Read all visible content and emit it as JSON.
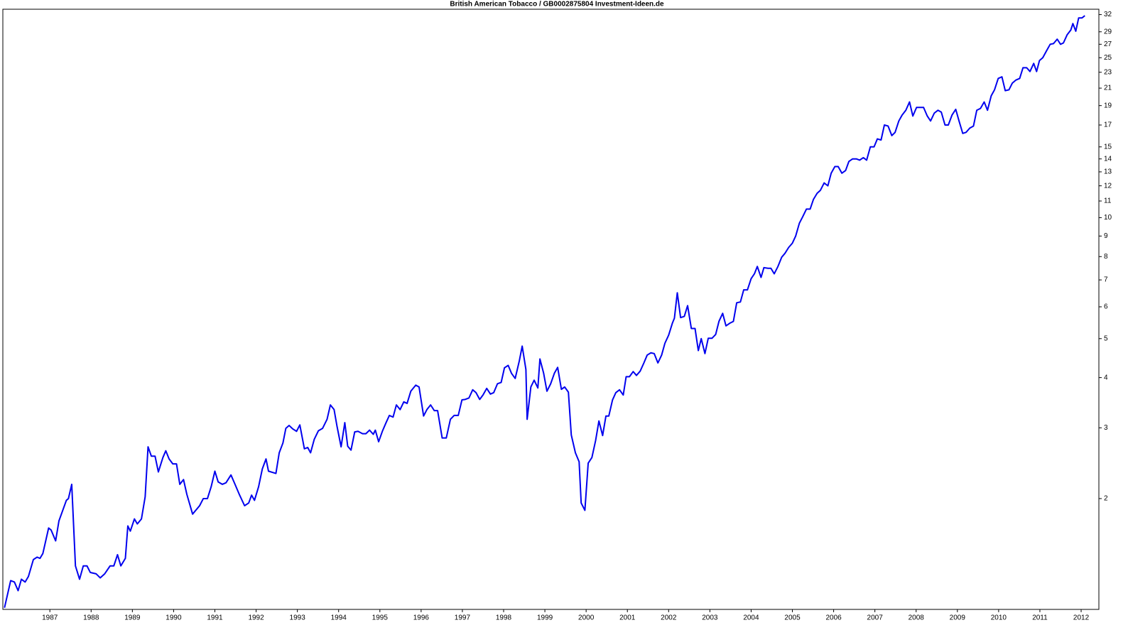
{
  "chart_data": {
    "type": "line",
    "title": "British American Tobacco / GB0002875804 Investment-Ideen.de",
    "color": "#0000ee",
    "yscale": "log",
    "grid": false,
    "xlim": [
      1985.86,
      2012.43
    ],
    "ylim": [
      1.06,
      33
    ],
    "xticks": [
      1987,
      1988,
      1989,
      1990,
      1991,
      1992,
      1993,
      1994,
      1995,
      1996,
      1997,
      1998,
      1999,
      2000,
      2001,
      2002,
      2003,
      2004,
      2005,
      2006,
      2007,
      2008,
      2009,
      2010,
      2011,
      2012
    ],
    "yticks": [
      2,
      3,
      4,
      5,
      6,
      7,
      8,
      9,
      10,
      11,
      12,
      13,
      14,
      15,
      17,
      19,
      21,
      23,
      25,
      27,
      29,
      32
    ],
    "x": [
      1985.9,
      1986.05,
      1986.14,
      1986.23,
      1986.31,
      1986.4,
      1986.48,
      1986.6,
      1986.69,
      1986.76,
      1986.83,
      1986.97,
      1987.03,
      1987.14,
      1987.22,
      1987.4,
      1987.45,
      1987.53,
      1987.62,
      1987.72,
      1987.81,
      1987.9,
      1987.98,
      1988.12,
      1988.22,
      1988.33,
      1988.46,
      1988.55,
      1988.64,
      1988.72,
      1988.83,
      1988.89,
      1988.95,
      1989.05,
      1989.12,
      1989.22,
      1989.31,
      1989.38,
      1989.46,
      1989.55,
      1989.63,
      1989.74,
      1989.81,
      1989.89,
      1989.98,
      1990.07,
      1990.15,
      1990.24,
      1990.32,
      1990.46,
      1990.63,
      1990.72,
      1990.82,
      1990.91,
      1991.0,
      1991.08,
      1991.18,
      1991.27,
      1991.39,
      1991.48,
      1991.6,
      1991.72,
      1991.82,
      1991.89,
      1991.96,
      1992.06,
      1992.15,
      1992.24,
      1992.3,
      1992.48,
      1992.56,
      1992.65,
      1992.72,
      1992.8,
      1992.89,
      1992.98,
      1993.06,
      1993.17,
      1993.25,
      1993.32,
      1993.41,
      1993.51,
      1993.61,
      1993.72,
      1993.8,
      1993.89,
      1993.96,
      1994.06,
      1994.15,
      1994.22,
      1994.3,
      1994.39,
      1994.47,
      1994.58,
      1994.66,
      1994.75,
      1994.84,
      1994.89,
      1994.97,
      1995.06,
      1995.15,
      1995.23,
      1995.32,
      1995.4,
      1995.49,
      1995.58,
      1995.66,
      1995.75,
      1995.87,
      1995.95,
      1996.06,
      1996.14,
      1996.23,
      1996.32,
      1996.4,
      1996.51,
      1996.61,
      1996.71,
      1996.8,
      1996.9,
      1996.99,
      1997.07,
      1997.16,
      1997.25,
      1997.33,
      1997.42,
      1997.5,
      1997.59,
      1997.68,
      1997.76,
      1997.85,
      1997.94,
      1998.02,
      1998.11,
      1998.19,
      1998.28,
      1998.38,
      1998.45,
      1998.54,
      1998.57,
      1998.66,
      1998.74,
      1998.83,
      1998.88,
      1998.97,
      1999.05,
      1999.14,
      1999.23,
      1999.31,
      1999.4,
      1999.48,
      1999.57,
      1999.64,
      1999.74,
      1999.83,
      1999.88,
      1999.97,
      2000.05,
      2000.14,
      2000.23,
      2000.31,
      2000.4,
      2000.48,
      2000.55,
      2000.64,
      2000.72,
      2000.81,
      2000.9,
      2000.97,
      2001.05,
      2001.14,
      2001.22,
      2001.31,
      2001.4,
      2001.48,
      2001.57,
      2001.65,
      2001.74,
      2001.83,
      2001.91,
      2002.0,
      2002.09,
      2002.14,
      2002.21,
      2002.29,
      2002.38,
      2002.46,
      2002.55,
      2002.64,
      2002.72,
      2002.79,
      2002.88,
      2002.96,
      2003.05,
      2003.14,
      2003.22,
      2003.31,
      2003.39,
      2003.48,
      2003.57,
      2003.65,
      2003.74,
      2003.82,
      2003.91,
      2004.0,
      2004.08,
      2004.15,
      2004.24,
      2004.31,
      2004.41,
      2004.48,
      2004.56,
      2004.65,
      2004.74,
      2004.82,
      2004.91,
      2005.0,
      2005.08,
      2005.17,
      2005.25,
      2005.34,
      2005.43,
      2005.51,
      2005.6,
      2005.68,
      2005.77,
      2005.86,
      2005.94,
      2006.03,
      2006.11,
      2006.2,
      2006.29,
      2006.37,
      2006.46,
      2006.55,
      2006.63,
      2006.72,
      2006.8,
      2006.89,
      2006.98,
      2007.06,
      2007.15,
      2007.23,
      2007.32,
      2007.41,
      2007.49,
      2007.58,
      2007.66,
      2007.75,
      2007.84,
      2007.92,
      2008.01,
      2008.1,
      2008.18,
      2008.27,
      2008.35,
      2008.44,
      2008.53,
      2008.61,
      2008.7,
      2008.78,
      2008.87,
      2008.96,
      2009.04,
      2009.13,
      2009.21,
      2009.3,
      2009.39,
      2009.47,
      2009.56,
      2009.65,
      2009.73,
      2009.82,
      2009.9,
      2009.99,
      2010.08,
      2010.16,
      2010.25,
      2010.33,
      2010.42,
      2010.51,
      2010.59,
      2010.68,
      2010.76,
      2010.85,
      2010.92,
      2010.99,
      2011.07,
      2011.16,
      2011.25,
      2011.33,
      2011.42,
      2011.5,
      2011.57,
      2011.66,
      2011.75,
      2011.8,
      2011.87,
      2011.94,
      2012.02,
      2012.09
    ],
    "values": [
      1.07,
      1.25,
      1.24,
      1.18,
      1.26,
      1.24,
      1.28,
      1.41,
      1.43,
      1.42,
      1.46,
      1.69,
      1.67,
      1.57,
      1.76,
      1.98,
      2.0,
      2.17,
      1.36,
      1.26,
      1.36,
      1.36,
      1.31,
      1.3,
      1.27,
      1.3,
      1.36,
      1.36,
      1.45,
      1.36,
      1.42,
      1.71,
      1.66,
      1.78,
      1.73,
      1.78,
      2.02,
      2.69,
      2.55,
      2.55,
      2.33,
      2.53,
      2.63,
      2.51,
      2.44,
      2.44,
      2.17,
      2.23,
      2.05,
      1.83,
      1.92,
      2.0,
      2.0,
      2.14,
      2.34,
      2.2,
      2.17,
      2.19,
      2.29,
      2.18,
      2.04,
      1.92,
      1.95,
      2.04,
      1.98,
      2.14,
      2.37,
      2.51,
      2.34,
      2.31,
      2.6,
      2.75,
      2.99,
      3.04,
      2.98,
      2.94,
      3.05,
      2.66,
      2.68,
      2.6,
      2.81,
      2.95,
      2.99,
      3.15,
      3.42,
      3.33,
      3.03,
      2.69,
      3.09,
      2.7,
      2.64,
      2.93,
      2.94,
      2.9,
      2.9,
      2.96,
      2.89,
      2.96,
      2.77,
      2.94,
      3.09,
      3.22,
      3.19,
      3.42,
      3.33,
      3.48,
      3.45,
      3.7,
      3.83,
      3.79,
      3.21,
      3.33,
      3.42,
      3.31,
      3.31,
      2.83,
      2.83,
      3.15,
      3.22,
      3.22,
      3.52,
      3.53,
      3.56,
      3.73,
      3.67,
      3.53,
      3.62,
      3.76,
      3.64,
      3.67,
      3.86,
      3.89,
      4.23,
      4.29,
      4.1,
      3.98,
      4.4,
      4.79,
      4.19,
      3.15,
      3.79,
      3.94,
      3.77,
      4.45,
      4.1,
      3.7,
      3.86,
      4.1,
      4.24,
      3.74,
      3.79,
      3.68,
      2.88,
      2.6,
      2.47,
      1.95,
      1.87,
      2.45,
      2.53,
      2.79,
      3.12,
      2.87,
      3.21,
      3.21,
      3.52,
      3.67,
      3.73,
      3.62,
      4.02,
      4.02,
      4.14,
      4.05,
      4.15,
      4.35,
      4.55,
      4.61,
      4.59,
      4.35,
      4.55,
      4.87,
      5.1,
      5.46,
      5.62,
      6.5,
      5.64,
      5.68,
      6.04,
      5.3,
      5.3,
      4.67,
      5.0,
      4.59,
      5.01,
      5.01,
      5.12,
      5.52,
      5.78,
      5.38,
      5.46,
      5.52,
      6.14,
      6.17,
      6.61,
      6.61,
      7.05,
      7.25,
      7.56,
      7.1,
      7.51,
      7.48,
      7.48,
      7.25,
      7.56,
      7.97,
      8.15,
      8.43,
      8.64,
      9.0,
      9.69,
      10.05,
      10.5,
      10.5,
      11.1,
      11.5,
      11.7,
      12.2,
      12.0,
      12.9,
      13.4,
      13.4,
      12.9,
      13.1,
      13.8,
      14.0,
      14.0,
      13.9,
      14.1,
      13.9,
      15.0,
      15.0,
      15.7,
      15.6,
      17.0,
      16.9,
      16.0,
      16.3,
      17.4,
      18.0,
      18.5,
      19.4,
      17.9,
      18.8,
      18.8,
      18.8,
      17.9,
      17.4,
      18.2,
      18.5,
      18.3,
      17.0,
      17.0,
      18.0,
      18.6,
      17.4,
      16.2,
      16.3,
      16.7,
      16.9,
      18.5,
      18.7,
      19.4,
      18.5,
      20.1,
      20.8,
      22.2,
      22.4,
      20.7,
      20.8,
      21.6,
      22.0,
      22.2,
      23.6,
      23.6,
      23.1,
      24.2,
      23.1,
      24.6,
      25.0,
      26.0,
      27.0,
      27.1,
      27.8,
      27.0,
      27.2,
      28.5,
      29.3,
      30.4,
      29.1,
      31.4,
      31.4,
      31.8
    ]
  }
}
